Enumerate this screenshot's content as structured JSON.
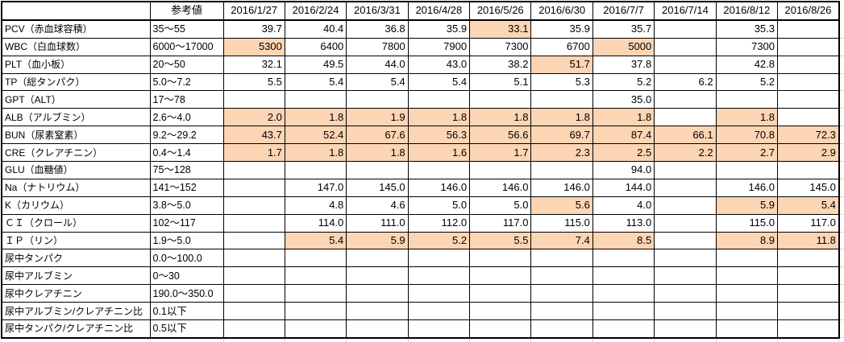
{
  "colors": {
    "cell_highlight": "#FCD5B4",
    "border": "#000000",
    "gridline": "#d8d8d8"
  },
  "table": {
    "corner_label": "",
    "ref_header": "参考値",
    "date_headers": [
      "2016/1/27",
      "2016/2/24",
      "2016/3/31",
      "2016/4/28",
      "2016/5/26",
      "2016/6/30",
      "2016/7/7",
      "2016/7/14",
      "2016/8/12",
      "2016/8/26"
    ],
    "rows": [
      {
        "label": "PCV（赤血球容積）",
        "ref": "35～55",
        "values": [
          "39.7",
          "40.4",
          "36.8",
          "35.9",
          "33.1",
          "35.9",
          "35.7",
          "",
          "35.3",
          ""
        ],
        "highlights": [
          4
        ]
      },
      {
        "label": "WBC（白血球数）",
        "ref": "6000～17000",
        "values": [
          "5300",
          "6400",
          "7800",
          "7900",
          "7300",
          "6700",
          "5000",
          "",
          "7300",
          ""
        ],
        "highlights": [
          0,
          6
        ]
      },
      {
        "label": "PLT（血小板）",
        "ref": "20～50",
        "values": [
          "32.1",
          "49.5",
          "44.0",
          "43.0",
          "38.2",
          "51.7",
          "37.8",
          "",
          "42.8",
          ""
        ],
        "highlights": [
          5
        ]
      },
      {
        "label": "TP（総タンパク）",
        "ref": "5.0～7.2",
        "values": [
          "5.5",
          "5.4",
          "5.4",
          "5.4",
          "5.1",
          "5.3",
          "5.2",
          "6.2",
          "5.2",
          ""
        ],
        "highlights": []
      },
      {
        "label": "GPT（ALT）",
        "ref": "17～78",
        "values": [
          "",
          "",
          "",
          "",
          "",
          "",
          "35.0",
          "",
          "",
          ""
        ],
        "highlights": []
      },
      {
        "label": "ALB（アルブミン）",
        "ref": "2.6～4.0",
        "values": [
          "2.0",
          "1.8",
          "1.9",
          "1.8",
          "1.8",
          "1.8",
          "1.8",
          "",
          "1.8",
          ""
        ],
        "highlights": [
          0,
          1,
          2,
          3,
          4,
          5,
          6,
          8
        ]
      },
      {
        "label": "BUN（尿素窒素）",
        "ref": "9.2～29.2",
        "values": [
          "43.7",
          "52.4",
          "67.6",
          "56.3",
          "56.6",
          "69.7",
          "87.4",
          "66.1",
          "70.8",
          "72.3"
        ],
        "highlights": [
          0,
          1,
          2,
          3,
          4,
          5,
          6,
          7,
          8,
          9
        ]
      },
      {
        "label": "CRE（クレアチニン）",
        "ref": "0.4～1.4",
        "values": [
          "1.7",
          "1.8",
          "1.8",
          "1.6",
          "1.7",
          "2.3",
          "2.5",
          "2.2",
          "2.7",
          "2.9"
        ],
        "highlights": [
          0,
          1,
          2,
          3,
          4,
          5,
          6,
          7,
          8,
          9
        ]
      },
      {
        "label": "GLU（血糖値）",
        "ref": "75～128",
        "values": [
          "",
          "",
          "",
          "",
          "",
          "",
          "94.0",
          "",
          "",
          ""
        ],
        "highlights": []
      },
      {
        "label": "Na（ナトリウム）",
        "ref": "141～152",
        "values": [
          "",
          "147.0",
          "145.0",
          "146.0",
          "146.0",
          "146.0",
          "144.0",
          "",
          "146.0",
          "145.0"
        ],
        "highlights": []
      },
      {
        "label": "K（カリウム）",
        "ref": "3.8～5.0",
        "values": [
          "",
          "4.8",
          "4.6",
          "5.0",
          "5.0",
          "5.6",
          "4.0",
          "",
          "5.9",
          "5.4"
        ],
        "highlights": [
          5,
          8,
          9
        ]
      },
      {
        "label": "ＣＩ（クロール）",
        "ref": "102～117",
        "values": [
          "",
          "114.0",
          "111.0",
          "112.0",
          "117.0",
          "115.0",
          "113.0",
          "",
          "115.0",
          "117.0"
        ],
        "highlights": []
      },
      {
        "label": "ＩＰ（リン）",
        "ref": "1.9～5.0",
        "values": [
          "",
          "5.4",
          "5.9",
          "5.2",
          "5.5",
          "7.4",
          "8.5",
          "",
          "8.9",
          "11.8"
        ],
        "highlights": [
          1,
          2,
          3,
          4,
          5,
          6,
          8,
          9
        ]
      },
      {
        "label": "尿中タンパク",
        "ref": "0.0～100.0",
        "values": [
          "",
          "",
          "",
          "",
          "",
          "",
          "",
          "",
          "",
          ""
        ],
        "highlights": []
      },
      {
        "label": "尿中アルブミン",
        "ref": "0～30",
        "values": [
          "",
          "",
          "",
          "",
          "",
          "",
          "",
          "",
          "",
          ""
        ],
        "highlights": []
      },
      {
        "label": "尿中クレアチニン",
        "ref": "190.0～350.0",
        "values": [
          "",
          "",
          "",
          "",
          "",
          "",
          "",
          "",
          "",
          ""
        ],
        "highlights": []
      },
      {
        "label": "尿中アルブミン/クレアチニン比",
        "ref": "0.1以下",
        "values": [
          "",
          "",
          "",
          "",
          "",
          "",
          "",
          "",
          "",
          ""
        ],
        "highlights": []
      },
      {
        "label": "尿中タンパク/クレアチニン比",
        "ref": "0.5以下",
        "values": [
          "",
          "",
          "",
          "",
          "",
          "",
          "",
          "",
          "",
          ""
        ],
        "highlights": []
      }
    ]
  }
}
